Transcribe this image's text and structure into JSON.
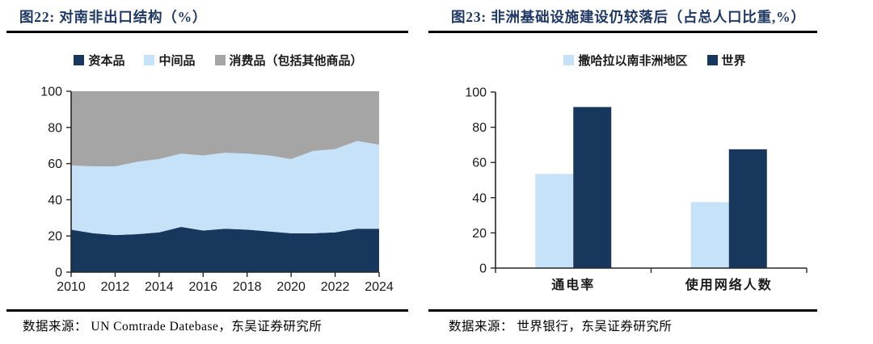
{
  "chart_data": [
    {
      "id": "figure-22",
      "type": "area",
      "stacked": true,
      "title": "图22:  对南非出口结构（%）",
      "x": [
        2010,
        2011,
        2012,
        2013,
        2014,
        2015,
        2016,
        2017,
        2018,
        2019,
        2020,
        2021,
        2022,
        2023,
        2024
      ],
      "xtick_years": [
        2010,
        2012,
        2014,
        2016,
        2018,
        2020,
        2022,
        2024
      ],
      "series": [
        {
          "name": "资本品",
          "color": "#17375D",
          "values": [
            23.5,
            21.5,
            20.5,
            21,
            22,
            25,
            23,
            24,
            23.5,
            22.5,
            21.5,
            21.5,
            22,
            24,
            24
          ]
        },
        {
          "name": "中间品",
          "color": "#C6E2F8",
          "values": [
            35.5,
            37,
            38,
            40,
            40.5,
            40.5,
            41.5,
            42,
            42,
            42,
            41,
            45.5,
            46,
            48.5,
            46.5
          ]
        },
        {
          "name": "消费品（包括其他商品）",
          "color": "#A5A5A5",
          "values": [
            41,
            41.5,
            41.5,
            39,
            37.5,
            34.5,
            35.5,
            34,
            34.5,
            35.5,
            37.5,
            33,
            32,
            27.5,
            29.5
          ]
        }
      ],
      "ylim": [
        0,
        100
      ],
      "yticks": [
        0,
        20,
        40,
        60,
        80,
        100
      ],
      "grid": false,
      "legend_position": "top",
      "source": "数据来源： UN Comtrade Datebase，东吴证券研究所"
    },
    {
      "id": "figure-23",
      "type": "bar",
      "title": "图23:  非洲基础设施建设仍较落后（占总人口比重,%）",
      "categories": [
        "通电率",
        "使用网络人数"
      ],
      "series": [
        {
          "name": "撒哈拉以南非洲地区",
          "color": "#C6E2F8",
          "values": [
            53.5,
            37.5
          ]
        },
        {
          "name": "世界",
          "color": "#17375D",
          "values": [
            91.5,
            67.5
          ]
        }
      ],
      "ylim": [
        0,
        100
      ],
      "yticks": [
        0,
        20,
        40,
        60,
        80,
        100
      ],
      "grid": false,
      "legend_position": "top",
      "source": "数据来源： 世界银行，东吴证券研究所"
    }
  ],
  "colors": {
    "navy": "#17375D",
    "light_blue": "#C6E2F8",
    "gray": "#A5A5A5",
    "title_navy": "#1F3864",
    "rule_black": "#000000"
  }
}
